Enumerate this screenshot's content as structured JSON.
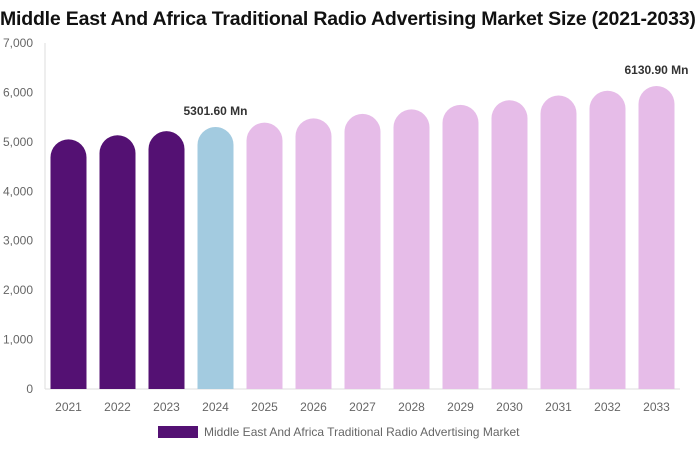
{
  "chart_data": {
    "type": "bar",
    "title": "Middle East And Africa Traditional Radio Advertising Market Size (2021-2033)",
    "categories": [
      "2021",
      "2022",
      "2023",
      "2024",
      "2025",
      "2026",
      "2027",
      "2028",
      "2029",
      "2030",
      "2031",
      "2032",
      "2033"
    ],
    "series": [
      {
        "name": "Middle East And Africa Traditional Radio Advertising Market",
        "values": [
          5050,
          5133,
          5216,
          5301.6,
          5388,
          5476,
          5565,
          5656,
          5748,
          5842,
          5937,
          6033,
          6130.9
        ]
      }
    ],
    "data_labels": [
      {
        "category": "2024",
        "text": "5301.60 Mn"
      },
      {
        "category": "2033",
        "text": "6130.90 Mn"
      }
    ],
    "ylim": [
      0,
      7000
    ],
    "yticks": [
      0,
      1000,
      2000,
      3000,
      4000,
      5000,
      6000,
      7000
    ],
    "ytick_labels": [
      "0",
      "1,000",
      "2,000",
      "3,000",
      "4,000",
      "5,000",
      "6,000",
      "7,000"
    ],
    "grid": false,
    "legend": "bottom",
    "bar_colors": {
      "historical": "#541173",
      "base_year": "#a3cbe0",
      "forecast": "#e6bce8"
    },
    "color_by_category": [
      "historical",
      "historical",
      "historical",
      "base_year",
      "forecast",
      "forecast",
      "forecast",
      "forecast",
      "forecast",
      "forecast",
      "forecast",
      "forecast",
      "forecast"
    ]
  }
}
